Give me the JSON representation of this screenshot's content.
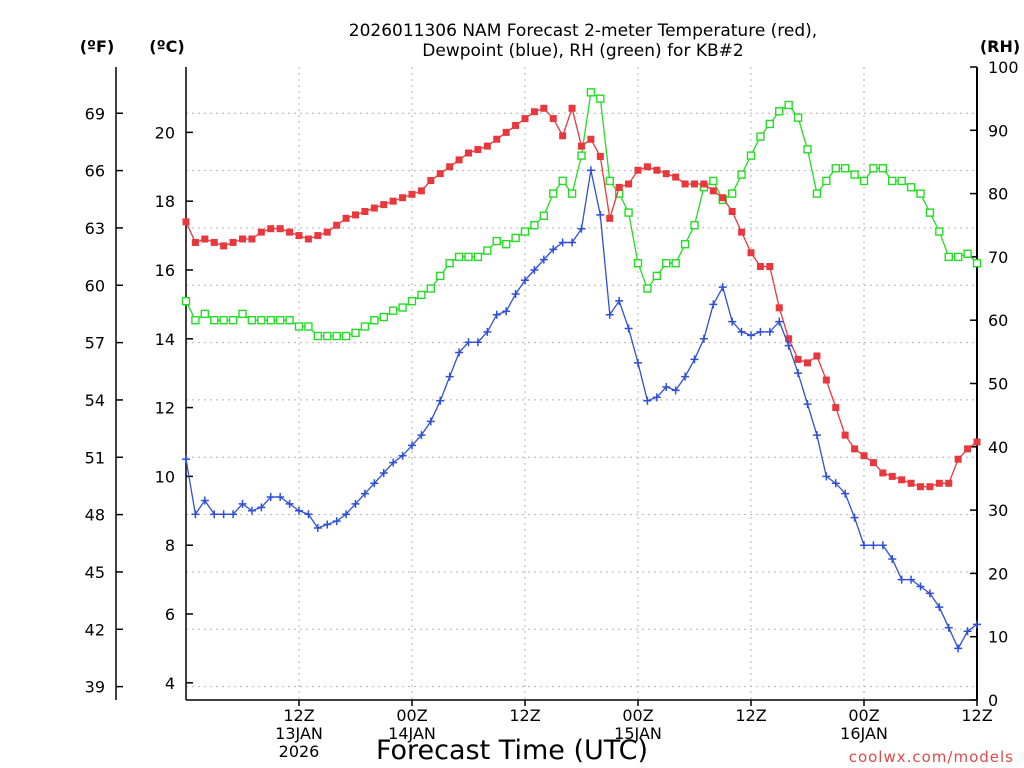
{
  "chart_data": {
    "type": "line",
    "title_lines": [
      "2026011306 NAM Forecast 2-meter Temperature (red),",
      "Dewpoint (blue), RH (green) for KB#2"
    ],
    "xlabel": "Forecast Time (UTC)",
    "units": {
      "fahrenheit": "(ºF)",
      "celsius": "(ºC)",
      "rh": "(RH)"
    },
    "credit": "coolwx.com/models",
    "colors": {
      "temperature": "#e8383d",
      "dewpoint": "#2f4fd8",
      "rh": "#22dd22",
      "grid": "#b4b4b4",
      "credit": "#e0484a"
    },
    "x_range": [
      6,
      90
    ],
    "x_ticks": [
      {
        "hour": 18,
        "lines": [
          "12Z",
          "13JAN",
          "2026"
        ]
      },
      {
        "hour": 30,
        "lines": [
          "00Z",
          "14JAN"
        ]
      },
      {
        "hour": 42,
        "lines": [
          "12Z"
        ]
      },
      {
        "hour": 54,
        "lines": [
          "00Z",
          "15JAN"
        ]
      },
      {
        "hour": 66,
        "lines": [
          "12Z"
        ]
      },
      {
        "hour": 78,
        "lines": [
          "00Z",
          "16JAN"
        ]
      },
      {
        "hour": 90,
        "lines": [
          "12Z"
        ]
      }
    ],
    "ylim_celsius": [
      3.5,
      21.9
    ],
    "y_ticks_celsius": [
      4,
      6,
      8,
      10,
      12,
      14,
      16,
      18,
      20
    ],
    "y_ticks_fahrenheit": [
      39,
      42,
      45,
      48,
      51,
      54,
      57,
      60,
      63,
      66,
      69
    ],
    "ylim_rh": [
      0,
      100
    ],
    "y_ticks_rh": [
      0,
      10,
      20,
      30,
      40,
      50,
      60,
      70,
      80,
      90,
      100
    ],
    "forecast_hours": [
      6,
      7,
      8,
      9,
      10,
      11,
      12,
      13,
      14,
      15,
      16,
      17,
      18,
      19,
      20,
      21,
      22,
      23,
      24,
      25,
      26,
      27,
      28,
      29,
      30,
      31,
      32,
      33,
      34,
      35,
      36,
      37,
      38,
      39,
      40,
      41,
      42,
      43,
      44,
      45,
      46,
      47,
      48,
      49,
      50,
      51,
      52,
      53,
      54,
      55,
      56,
      57,
      58,
      59,
      60,
      61,
      62,
      63,
      64,
      65,
      66,
      67,
      68,
      69,
      70,
      71,
      72,
      73,
      74,
      75,
      76,
      77,
      78,
      79,
      80,
      81,
      82,
      83,
      84,
      85,
      86,
      87,
      88,
      89,
      90
    ],
    "series": [
      {
        "name": "Temperature",
        "unit": "°C",
        "marker": "filled-square",
        "values": [
          17.4,
          16.8,
          16.9,
          16.8,
          16.7,
          16.8,
          16.9,
          16.9,
          17.1,
          17.2,
          17.2,
          17.1,
          17.0,
          16.9,
          17.0,
          17.1,
          17.3,
          17.5,
          17.6,
          17.7,
          17.8,
          17.9,
          18.0,
          18.1,
          18.2,
          18.3,
          18.6,
          18.8,
          19.0,
          19.2,
          19.4,
          19.5,
          19.6,
          19.8,
          20.0,
          20.2,
          20.4,
          20.6,
          20.7,
          20.4,
          19.9,
          20.7,
          19.6,
          19.8,
          19.3,
          17.5,
          18.4,
          18.5,
          18.9,
          19.0,
          18.9,
          18.8,
          18.7,
          18.5,
          18.5,
          18.5,
          18.3,
          18.1,
          17.7,
          17.1,
          16.5,
          16.1,
          16.1,
          14.9,
          14.0,
          13.4,
          13.3,
          13.5,
          12.8,
          12.0,
          11.2,
          10.8,
          10.6,
          10.4,
          10.1,
          10.0,
          9.9,
          9.8,
          9.7,
          9.7,
          9.8,
          9.8,
          10.5,
          10.8,
          11.0
        ]
      },
      {
        "name": "Dewpoint",
        "unit": "°C",
        "marker": "plus",
        "values": [
          10.5,
          8.9,
          9.3,
          8.9,
          8.9,
          8.9,
          9.2,
          9.0,
          9.1,
          9.4,
          9.4,
          9.2,
          9.0,
          8.9,
          8.5,
          8.6,
          8.7,
          8.9,
          9.2,
          9.5,
          9.8,
          10.1,
          10.4,
          10.6,
          10.9,
          11.2,
          11.6,
          12.2,
          12.9,
          13.6,
          13.9,
          13.9,
          14.2,
          14.7,
          14.8,
          15.3,
          15.7,
          16.0,
          16.3,
          16.6,
          16.8,
          16.8,
          17.2,
          18.9,
          17.6,
          14.7,
          15.1,
          14.3,
          13.3,
          12.2,
          12.3,
          12.6,
          12.5,
          12.9,
          13.4,
          14.0,
          15.0,
          15.5,
          14.5,
          14.2,
          14.1,
          14.2,
          14.2,
          14.5,
          13.8,
          13.0,
          12.1,
          11.2,
          10.0,
          9.8,
          9.5,
          8.8,
          8.0,
          8.0,
          8.0,
          7.6,
          7.0,
          7.0,
          6.8,
          6.6,
          6.2,
          5.6,
          5.0,
          5.5,
          5.7
        ]
      },
      {
        "name": "RH",
        "unit": "%",
        "marker": "open-square",
        "values": [
          63,
          60,
          61,
          60,
          60,
          60,
          61,
          60,
          60,
          60,
          60,
          60,
          59,
          59,
          57.5,
          57.5,
          57.5,
          57.5,
          58,
          59,
          60,
          60.5,
          61.5,
          62,
          63,
          64,
          65,
          67,
          69,
          70,
          70,
          70,
          71,
          72.5,
          72,
          73,
          74,
          75,
          76.5,
          80,
          82,
          80,
          86,
          96,
          95,
          82,
          80,
          77,
          69,
          65,
          67,
          69,
          69,
          72,
          75,
          81,
          82,
          79,
          80,
          83,
          86,
          89,
          91,
          93,
          94,
          92,
          87,
          80,
          82,
          84,
          84,
          83,
          82,
          84,
          84,
          82,
          82,
          81,
          80,
          77,
          74,
          70,
          70,
          70.5,
          69
        ]
      }
    ]
  }
}
